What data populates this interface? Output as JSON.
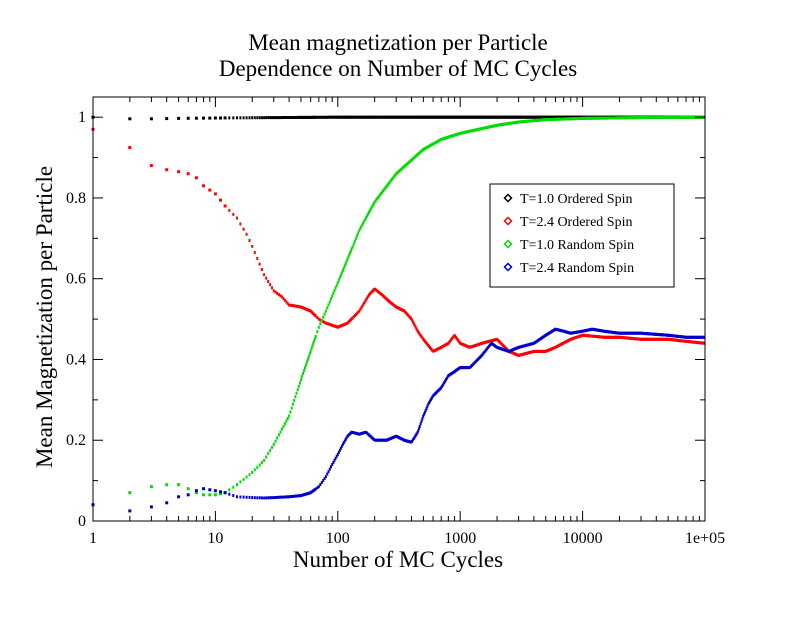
{
  "chart_data": {
    "type": "scatter",
    "title": [
      "Mean magnetization per Particle",
      "Dependence on Number of MC Cycles"
    ],
    "xlabel": "Number of MC Cycles",
    "ylabel": "Mean Magnetization per Particle",
    "x_scale": "log",
    "xlim": [
      1,
      100000
    ],
    "ylim": [
      0,
      1.05
    ],
    "x_ticks": [
      {
        "value": 1,
        "label": "1"
      },
      {
        "value": 10,
        "label": "10"
      },
      {
        "value": 100,
        "label": "100"
      },
      {
        "value": 1000,
        "label": "1000"
      },
      {
        "value": 10000,
        "label": "10000"
      },
      {
        "value": 100000,
        "label": "1e+05"
      }
    ],
    "y_ticks": [
      {
        "value": 0,
        "label": "0"
      },
      {
        "value": 0.2,
        "label": "0.2"
      },
      {
        "value": 0.4,
        "label": "0.4"
      },
      {
        "value": 0.6,
        "label": "0.6"
      },
      {
        "value": 0.8,
        "label": "0.8"
      },
      {
        "value": 1,
        "label": "1"
      }
    ],
    "grid": false,
    "legend_position": "right, upper-middle",
    "series": [
      {
        "name": "T=1.0 Ordered Spin",
        "color": "#000000",
        "points": [
          [
            1,
            1.0
          ],
          [
            2,
            0.996
          ],
          [
            3,
            0.996
          ],
          [
            5,
            0.997
          ],
          [
            10,
            0.998
          ],
          [
            30,
            0.999
          ],
          [
            100,
            1.0
          ],
          [
            1000,
            1.0
          ],
          [
            10000,
            1.0
          ],
          [
            100000,
            1.0
          ]
        ]
      },
      {
        "name": "T=2.4 Ordered Spin",
        "color": "#ff0000",
        "points": [
          [
            1,
            0.97
          ],
          [
            2,
            0.925
          ],
          [
            3,
            0.88
          ],
          [
            4,
            0.87
          ],
          [
            5,
            0.865
          ],
          [
            6,
            0.86
          ],
          [
            7,
            0.85
          ],
          [
            8,
            0.83
          ],
          [
            10,
            0.81
          ],
          [
            12,
            0.78
          ],
          [
            15,
            0.75
          ],
          [
            18,
            0.71
          ],
          [
            20,
            0.68
          ],
          [
            22,
            0.65
          ],
          [
            25,
            0.61
          ],
          [
            30,
            0.57
          ],
          [
            35,
            0.555
          ],
          [
            40,
            0.535
          ],
          [
            50,
            0.53
          ],
          [
            60,
            0.52
          ],
          [
            70,
            0.5
          ],
          [
            80,
            0.49
          ],
          [
            100,
            0.48
          ],
          [
            120,
            0.49
          ],
          [
            150,
            0.52
          ],
          [
            180,
            0.56
          ],
          [
            200,
            0.575
          ],
          [
            230,
            0.56
          ],
          [
            260,
            0.545
          ],
          [
            300,
            0.53
          ],
          [
            350,
            0.52
          ],
          [
            400,
            0.5
          ],
          [
            450,
            0.47
          ],
          [
            500,
            0.45
          ],
          [
            600,
            0.42
          ],
          [
            700,
            0.43
          ],
          [
            800,
            0.44
          ],
          [
            900,
            0.46
          ],
          [
            1000,
            0.44
          ],
          [
            1200,
            0.43
          ],
          [
            1500,
            0.44
          ],
          [
            2000,
            0.45
          ],
          [
            2500,
            0.42
          ],
          [
            3000,
            0.41
          ],
          [
            4000,
            0.42
          ],
          [
            5000,
            0.42
          ],
          [
            6000,
            0.43
          ],
          [
            8000,
            0.45
          ],
          [
            10000,
            0.46
          ],
          [
            15000,
            0.455
          ],
          [
            20000,
            0.455
          ],
          [
            30000,
            0.45
          ],
          [
            50000,
            0.45
          ],
          [
            70000,
            0.445
          ],
          [
            100000,
            0.44
          ]
        ]
      },
      {
        "name": "T=1.0 Random Spin",
        "color": "#00dd00",
        "points": [
          [
            1,
            0.04
          ],
          [
            2,
            0.07
          ],
          [
            3,
            0.085
          ],
          [
            4,
            0.09
          ],
          [
            5,
            0.09
          ],
          [
            6,
            0.08
          ],
          [
            7,
            0.07
          ],
          [
            8,
            0.065
          ],
          [
            10,
            0.065
          ],
          [
            12,
            0.07
          ],
          [
            15,
            0.09
          ],
          [
            20,
            0.12
          ],
          [
            25,
            0.15
          ],
          [
            30,
            0.19
          ],
          [
            40,
            0.26
          ],
          [
            50,
            0.35
          ],
          [
            60,
            0.42
          ],
          [
            70,
            0.48
          ],
          [
            80,
            0.52
          ],
          [
            100,
            0.59
          ],
          [
            150,
            0.72
          ],
          [
            200,
            0.79
          ],
          [
            300,
            0.86
          ],
          [
            500,
            0.92
          ],
          [
            700,
            0.945
          ],
          [
            1000,
            0.96
          ],
          [
            2000,
            0.98
          ],
          [
            3000,
            0.988
          ],
          [
            5000,
            0.994
          ],
          [
            10000,
            0.997
          ],
          [
            30000,
            0.999
          ],
          [
            100000,
            1.0
          ]
        ]
      },
      {
        "name": "T=2.4 Random Spin",
        "color": "#0000cc",
        "points": [
          [
            1,
            0.04
          ],
          [
            2,
            0.025
          ],
          [
            3,
            0.035
          ],
          [
            4,
            0.045
          ],
          [
            5,
            0.06
          ],
          [
            6,
            0.065
          ],
          [
            7,
            0.075
          ],
          [
            8,
            0.08
          ],
          [
            10,
            0.075
          ],
          [
            12,
            0.07
          ],
          [
            15,
            0.06
          ],
          [
            20,
            0.058
          ],
          [
            25,
            0.057
          ],
          [
            30,
            0.058
          ],
          [
            40,
            0.06
          ],
          [
            50,
            0.063
          ],
          [
            60,
            0.07
          ],
          [
            70,
            0.085
          ],
          [
            80,
            0.11
          ],
          [
            90,
            0.14
          ],
          [
            100,
            0.165
          ],
          [
            110,
            0.19
          ],
          [
            120,
            0.21
          ],
          [
            130,
            0.22
          ],
          [
            150,
            0.215
          ],
          [
            170,
            0.22
          ],
          [
            200,
            0.2
          ],
          [
            250,
            0.2
          ],
          [
            300,
            0.21
          ],
          [
            350,
            0.2
          ],
          [
            400,
            0.195
          ],
          [
            450,
            0.22
          ],
          [
            500,
            0.26
          ],
          [
            550,
            0.29
          ],
          [
            600,
            0.31
          ],
          [
            700,
            0.33
          ],
          [
            800,
            0.36
          ],
          [
            900,
            0.37
          ],
          [
            1000,
            0.38
          ],
          [
            1200,
            0.38
          ],
          [
            1500,
            0.41
          ],
          [
            1800,
            0.44
          ],
          [
            2000,
            0.43
          ],
          [
            2500,
            0.42
          ],
          [
            3000,
            0.43
          ],
          [
            4000,
            0.44
          ],
          [
            5000,
            0.46
          ],
          [
            6000,
            0.475
          ],
          [
            7000,
            0.47
          ],
          [
            8000,
            0.465
          ],
          [
            10000,
            0.47
          ],
          [
            12000,
            0.475
          ],
          [
            15000,
            0.47
          ],
          [
            20000,
            0.465
          ],
          [
            30000,
            0.465
          ],
          [
            50000,
            0.46
          ],
          [
            70000,
            0.455
          ],
          [
            100000,
            0.455
          ]
        ]
      }
    ]
  }
}
